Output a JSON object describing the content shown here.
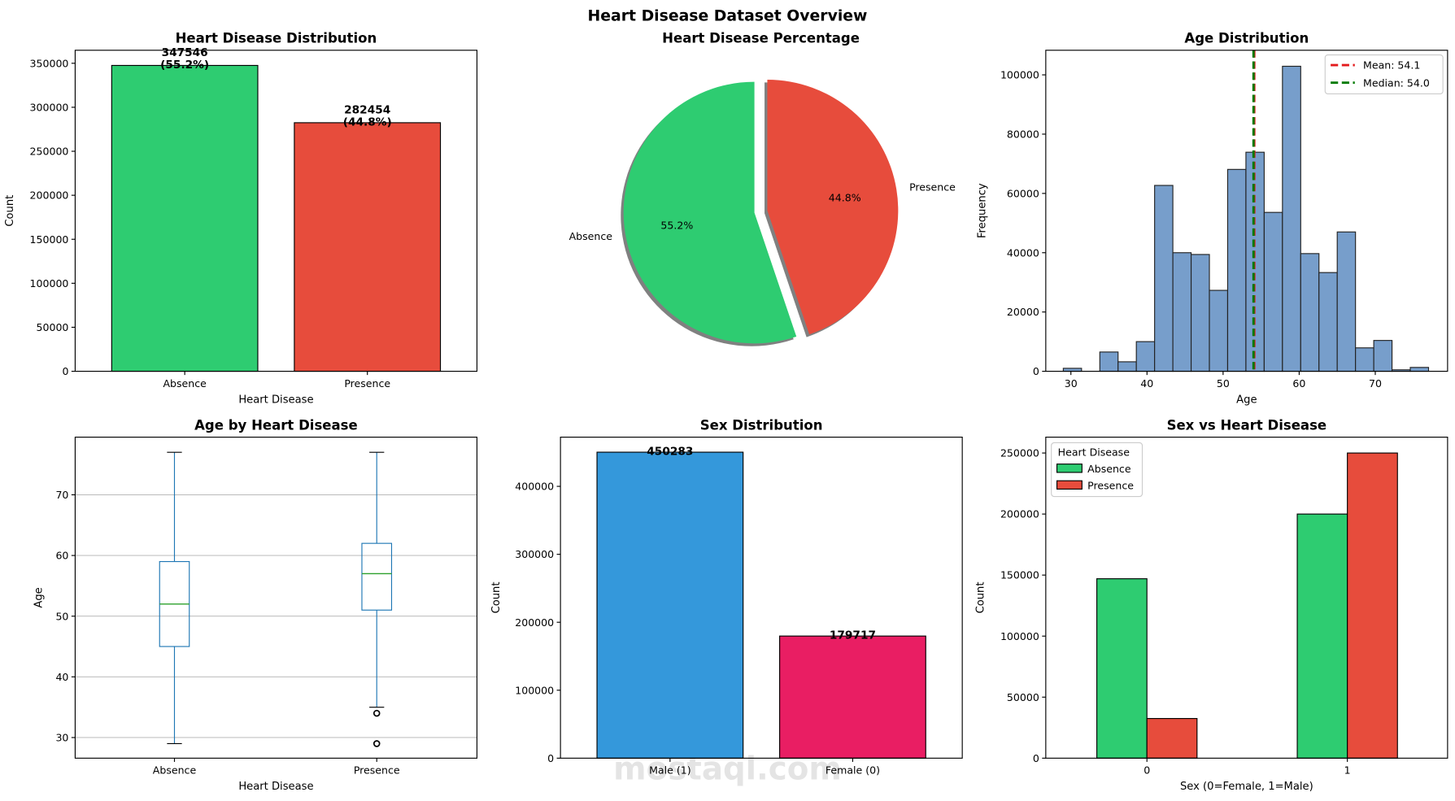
{
  "figure_title": "Heart Disease Dataset Overview",
  "watermark": "mostaql.com",
  "chart_data": [
    {
      "type": "bar",
      "title": "Heart Disease Distribution",
      "xlabel": "Heart Disease",
      "ylabel": "Count",
      "categories": [
        "Absence",
        "Presence"
      ],
      "values": [
        347546,
        282454
      ],
      "data_labels": [
        [
          "347546",
          "(55.2%)"
        ],
        [
          "282454",
          "(44.8%)"
        ]
      ],
      "colors": [
        "#2ecc71",
        "#e74c3c"
      ],
      "ylim": [
        0,
        364800
      ],
      "yticks": [
        0,
        50000,
        100000,
        150000,
        200000,
        250000,
        300000,
        350000
      ]
    },
    {
      "type": "pie",
      "title": "Heart Disease Percentage",
      "categories": [
        "Absence",
        "Presence"
      ],
      "values": [
        55.2,
        44.8
      ],
      "pct_labels": [
        "55.2%",
        "44.8%"
      ],
      "colors": [
        "#2ecc71",
        "#e74c3c"
      ],
      "explode": [
        0,
        0.1
      ],
      "start_angle": 90,
      "shadow": true
    },
    {
      "type": "histogram",
      "title": "Age Distribution",
      "xlabel": "Age",
      "ylabel": "Frequency",
      "bin_start": 29,
      "bin_width": 2.4,
      "counts": [
        1000,
        0,
        6500,
        3200,
        10000,
        62700,
        40000,
        39400,
        27300,
        68100,
        73900,
        53600,
        102900,
        39700,
        33300,
        47000,
        7900,
        10400,
        500,
        1300
      ],
      "color": "#779ecb",
      "xlim": [
        26.7,
        79.5
      ],
      "ylim": [
        0,
        108300
      ],
      "xticks": [
        30,
        40,
        50,
        60,
        70
      ],
      "yticks": [
        0,
        20000,
        40000,
        60000,
        80000,
        100000
      ],
      "ref_lines": [
        {
          "label": "Mean: 54.1",
          "value": 54.1,
          "color": "#e31a1c"
        },
        {
          "label": "Median: 54.0",
          "value": 54.0,
          "color": "#007a00"
        }
      ],
      "legend": "top-right"
    },
    {
      "type": "boxplot",
      "title": "Age by Heart Disease",
      "xlabel": "Heart Disease",
      "ylabel": "Age",
      "categories": [
        "Absence",
        "Presence"
      ],
      "boxes": [
        {
          "whislo": 29,
          "q1": 45,
          "median": 52,
          "q3": 59,
          "whishi": 77,
          "fliers": []
        },
        {
          "whislo": 35,
          "q1": 51,
          "median": 57,
          "q3": 62,
          "whishi": 77,
          "fliers": [
            34,
            29
          ]
        }
      ],
      "ylim": [
        26.6,
        79.5
      ],
      "yticks": [
        30,
        40,
        50,
        60,
        70
      ],
      "grid": true
    },
    {
      "type": "bar",
      "title": "Sex Distribution",
      "xlabel": "",
      "ylabel": "Count",
      "categories": [
        "Male (1)",
        "Female (0)"
      ],
      "values": [
        450283,
        179717
      ],
      "data_labels": [
        [
          "450283"
        ],
        [
          "179717"
        ]
      ],
      "colors": [
        "#3498db",
        "#e91e63"
      ],
      "ylim": [
        0,
        472400
      ],
      "yticks": [
        0,
        100000,
        200000,
        300000,
        400000
      ]
    },
    {
      "type": "grouped_bar",
      "title": "Sex vs Heart Disease",
      "xlabel": "Sex (0=Female, 1=Male)",
      "ylabel": "Count",
      "categories": [
        "0",
        "1"
      ],
      "series": [
        {
          "name": "Absence",
          "values": [
            147000,
            200000
          ],
          "color": "#2ecc71"
        },
        {
          "name": "Presence",
          "values": [
            32500,
            250000
          ],
          "color": "#e74c3c"
        }
      ],
      "legend_title": "Heart Disease",
      "legend": "top-left",
      "ylim": [
        0,
        263000
      ],
      "yticks": [
        0,
        50000,
        100000,
        150000,
        200000,
        250000
      ]
    }
  ]
}
